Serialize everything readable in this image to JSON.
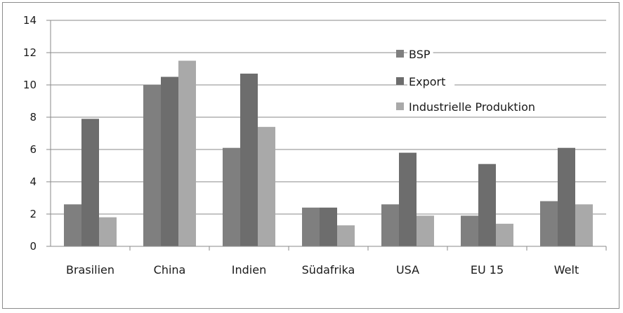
{
  "chart_data": {
    "type": "bar",
    "title": "",
    "xlabel": "",
    "ylabel": "",
    "ylim": [
      0,
      14
    ],
    "yticks": [
      "0",
      "2",
      "4",
      "6",
      "8",
      "10",
      "12",
      "14"
    ],
    "grid": true,
    "legend_position": "top-right",
    "categories": [
      "Brasilien",
      "China",
      "Indien",
      "Südafrika",
      "USA",
      "EU 15",
      "Welt"
    ],
    "series": [
      {
        "name": "BSP",
        "color": "#7f7f7f",
        "values": [
          2.6,
          10.0,
          6.1,
          2.4,
          2.6,
          1.9,
          2.8
        ]
      },
      {
        "name": "Export",
        "color": "#6d6d6d",
        "values": [
          7.9,
          10.5,
          10.7,
          2.4,
          5.8,
          5.1,
          6.1
        ]
      },
      {
        "name": "Industrielle Produktion",
        "color": "#a9a9a9",
        "values": [
          1.8,
          11.5,
          7.4,
          1.3,
          1.9,
          1.4,
          2.6
        ]
      }
    ]
  }
}
